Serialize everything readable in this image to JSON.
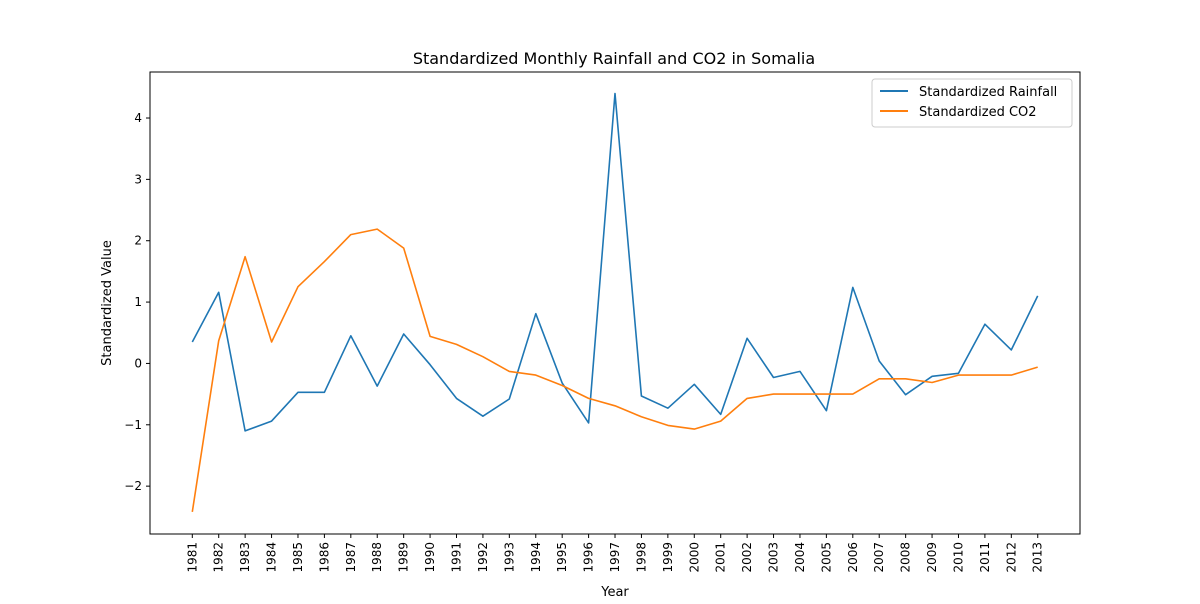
{
  "chart_data": {
    "type": "line",
    "title": "Standardized Monthly Rainfall and CO2 in Somalia",
    "xlabel": "Year",
    "ylabel": "Standardized Value",
    "categories": [
      "1981",
      "1982",
      "1983",
      "1984",
      "1985",
      "1986",
      "1987",
      "1988",
      "1989",
      "1990",
      "1991",
      "1992",
      "1993",
      "1994",
      "1995",
      "1996",
      "1997",
      "1998",
      "1999",
      "2000",
      "2001",
      "2002",
      "2003",
      "2004",
      "2005",
      "2006",
      "2007",
      "2008",
      "2009",
      "2010",
      "2011",
      "2012",
      "2013"
    ],
    "yticks": [
      -2,
      -1,
      0,
      1,
      2,
      3,
      4
    ],
    "ytick_labels": [
      "−2",
      "−1",
      "0",
      "1",
      "2",
      "3",
      "4"
    ],
    "ylim": [
      -2.78,
      4.75
    ],
    "grid": false,
    "legend_position": "top-right",
    "series": [
      {
        "name": "Standardized Rainfall",
        "color": "#1f77b4",
        "values": [
          0.35,
          1.16,
          -1.1,
          -0.94,
          -0.47,
          -0.47,
          0.45,
          -0.37,
          0.48,
          -0.02,
          -0.57,
          -0.86,
          -0.58,
          0.81,
          -0.32,
          -0.97,
          4.4,
          -0.53,
          -0.73,
          -0.34,
          -0.83,
          0.41,
          -0.23,
          -0.13,
          -0.77,
          1.24,
          0.04,
          -0.51,
          -0.21,
          -0.16,
          0.64,
          0.22,
          1.1
        ]
      },
      {
        "name": "Standardized CO2",
        "color": "#ff7f0e",
        "values": [
          -2.42,
          0.37,
          1.74,
          0.35,
          1.25,
          1.66,
          2.1,
          2.19,
          1.88,
          0.44,
          0.31,
          0.11,
          -0.13,
          -0.19,
          -0.36,
          -0.57,
          -0.69,
          -0.87,
          -1.01,
          -1.07,
          -0.94,
          -0.57,
          -0.5,
          -0.5,
          -0.5,
          -0.5,
          -0.25,
          -0.25,
          -0.31,
          -0.19,
          -0.19,
          -0.19,
          -0.06
        ]
      }
    ]
  }
}
